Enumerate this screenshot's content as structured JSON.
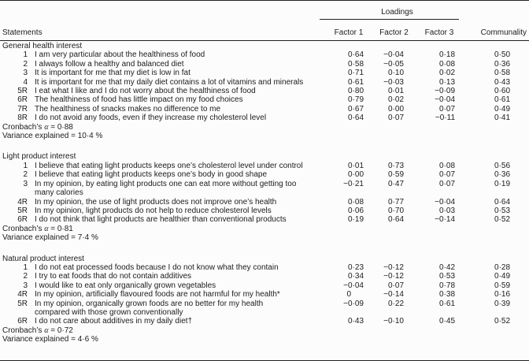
{
  "colors": {
    "background": "#fcfcfc",
    "text": "#1c1c1c",
    "rule": "#222222"
  },
  "table": {
    "header": {
      "statements_label": "Statements",
      "loadings_label": "Loadings",
      "factor_columns": [
        "Factor 1",
        "Factor 2",
        "Factor 3"
      ],
      "communality_label": "Communality"
    },
    "sections": [
      {
        "title": "General health interest",
        "items": [
          {
            "no": "1",
            "text": "I am very particular about the healthiness of food",
            "f1": "0·64",
            "f2": "−0·04",
            "f3": "0·18",
            "comm": "0·50"
          },
          {
            "no": "2",
            "text": "I always follow a healthy and balanced diet",
            "f1": "0·58",
            "f2": "−0·05",
            "f3": "0·08",
            "comm": "0·36"
          },
          {
            "no": "3",
            "text": "It is important for me that my diet is low in fat",
            "f1": "0·71",
            "f2": "0·10",
            "f3": "0·02",
            "comm": "0·58"
          },
          {
            "no": "4",
            "text": "It is important for me that my daily diet contains a lot of vitamins and minerals",
            "f1": "0·61",
            "f2": "−0·03",
            "f3": "0·13",
            "comm": "0·43"
          },
          {
            "no": "5R",
            "text": "I eat what I like and I do not worry about the healthiness of food",
            "f1": "0·80",
            "f2": "0·01",
            "f3": "−0·09",
            "comm": "0·60"
          },
          {
            "no": "6R",
            "text": "The healthiness of food has little impact on my food choices",
            "f1": "0·79",
            "f2": "0·02",
            "f3": "−0·04",
            "comm": "0·61"
          },
          {
            "no": "7R",
            "text": "The healthiness of snacks makes no difference to me",
            "f1": "0·67",
            "f2": "0·00",
            "f3": "0·07",
            "comm": "0·49"
          },
          {
            "no": "8R",
            "text": "I do not avoid any foods, even if they increase my cholesterol level",
            "f1": "0·64",
            "f2": "0·07",
            "f3": "−0·11",
            "comm": "0·41"
          }
        ],
        "cronbach": "Cronbach’s α = 0·88",
        "variance": "Variance explained = 10·4 %"
      },
      {
        "title": "Light product interest",
        "items": [
          {
            "no": "1",
            "text": "I believe that eating light products keeps one’s cholesterol level under control",
            "f1": "0·01",
            "f2": "0·73",
            "f3": "0·08",
            "comm": "0·56"
          },
          {
            "no": "2",
            "text": "I believe that eating light products keeps one’s body in good shape",
            "f1": "0·00",
            "f2": "0·59",
            "f3": "0·07",
            "comm": "0·36"
          },
          {
            "no": "3",
            "text": "In my opinion, by eating light products one can eat more without getting too",
            "text2": "many calories",
            "f1": "−0·21",
            "f2": "0·47",
            "f3": "0·07",
            "comm": "0·19"
          },
          {
            "no": "4R",
            "text": "In my opinion, the use of light products does not improve one’s health",
            "f1": "0·08",
            "f2": "0·77",
            "f3": "−0·04",
            "comm": "0·64"
          },
          {
            "no": "5R",
            "text": "In my opinion, light products do not help to reduce cholesterol levels",
            "f1": "0·06",
            "f2": "0·70",
            "f3": "0·03",
            "comm": "0·53"
          },
          {
            "no": "6R",
            "text": "I do not think that light products are healthier than conventional products",
            "f1": "0·19",
            "f2": "0·64",
            "f3": "−0·14",
            "comm": "0·52"
          }
        ],
        "cronbach": "Cronbach’s α = 0·81",
        "variance": "Variance explained = 7·4 %"
      },
      {
        "title": "Natural product interest",
        "items": [
          {
            "no": "1",
            "text": "I do not eat processed foods because I do not know what they contain",
            "f1": "0·23",
            "f2": "−0·12",
            "f3": "0·42",
            "comm": "0·28"
          },
          {
            "no": "2",
            "text": "I try to eat foods that do not contain additives",
            "f1": "0·34",
            "f2": "−0·12",
            "f3": "0·53",
            "comm": "0·49"
          },
          {
            "no": "3",
            "text": "I would like to eat only organically grown vegetables",
            "f1": "−0·04",
            "f2": "0·07",
            "f3": "0·78",
            "comm": "0·59"
          },
          {
            "no": "4R",
            "text": "In my opinion, artificially flavoured foods are not harmful for my health*",
            "f1": "0",
            "f2": "−0·14",
            "f3": "0·38",
            "comm": "0·16"
          },
          {
            "no": "5R",
            "text": "In my opinion, organically grown foods are no better for my health",
            "text2": "compared with those grown conventionally",
            "f1": "−0·09",
            "f2": "0·22",
            "f3": "0·61",
            "comm": "0·39"
          },
          {
            "no": "6R",
            "text": "I do not care about additives in my daily diet†",
            "f1": "0·43",
            "f2": "−0·10",
            "f3": "0·45",
            "comm": "0·52"
          }
        ],
        "cronbach": "Cronbach’s α = 0·72",
        "variance": "Variance explained = 4·6 %"
      }
    ]
  }
}
